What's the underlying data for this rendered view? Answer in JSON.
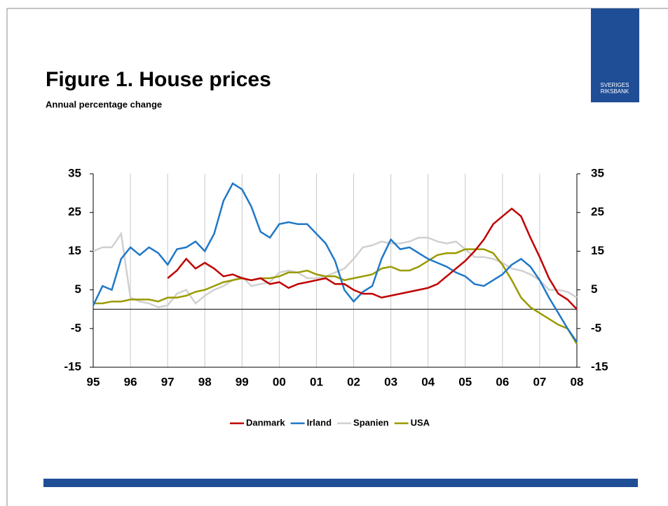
{
  "header": {
    "title": "Figure 1. House prices",
    "subtitle": "Annual percentage change",
    "logo": [
      "SVERIGES",
      "RIKSBANK"
    ]
  },
  "chart_data": {
    "type": "line",
    "x": [
      1995,
      1995.25,
      1995.5,
      1995.75,
      1996,
      1996.25,
      1996.5,
      1996.75,
      1997,
      1997.25,
      1997.5,
      1997.75,
      1998,
      1998.25,
      1998.5,
      1998.75,
      1999,
      1999.25,
      1999.5,
      1999.75,
      2000,
      2000.25,
      2000.5,
      2000.75,
      2001,
      2001.25,
      2001.5,
      2001.75,
      2002,
      2002.25,
      2002.5,
      2002.75,
      2003,
      2003.25,
      2003.5,
      2003.75,
      2004,
      2004.25,
      2004.5,
      2004.75,
      2005,
      2005.25,
      2005.5,
      2005.75,
      2006,
      2006.25,
      2006.5,
      2006.75,
      2007,
      2007.25,
      2007.5,
      2007.75,
      2008
    ],
    "xlim": [
      1995,
      2008
    ],
    "xticks": [
      {
        "value": 1995,
        "label": "95"
      },
      {
        "value": 1996,
        "label": "96"
      },
      {
        "value": 1997,
        "label": "97"
      },
      {
        "value": 1998,
        "label": "98"
      },
      {
        "value": 1999,
        "label": "99"
      },
      {
        "value": 2000,
        "label": "00"
      },
      {
        "value": 2001,
        "label": "01"
      },
      {
        "value": 2002,
        "label": "02"
      },
      {
        "value": 2003,
        "label": "03"
      },
      {
        "value": 2004,
        "label": "04"
      },
      {
        "value": 2005,
        "label": "05"
      },
      {
        "value": 2006,
        "label": "06"
      },
      {
        "value": 2007,
        "label": "07"
      },
      {
        "value": 2008,
        "label": "08"
      }
    ],
    "ylim": [
      -15,
      35
    ],
    "yticks": [
      -15,
      -5,
      5,
      15,
      25,
      35
    ],
    "grid": true,
    "legend": "bottom",
    "series": [
      {
        "name": "Danmark",
        "color": "#c00000",
        "values": [
          null,
          null,
          null,
          null,
          null,
          null,
          null,
          null,
          8,
          10,
          13,
          10.5,
          12,
          10.5,
          8.5,
          9,
          8,
          7.5,
          8,
          6.5,
          7,
          5.5,
          6.5,
          7,
          7.5,
          8,
          6.5,
          6.5,
          5,
          4,
          4,
          3,
          3.5,
          4,
          4.5,
          5,
          5.5,
          6.5,
          8.5,
          10.5,
          12.5,
          15,
          18,
          22,
          24,
          26,
          24,
          18.5,
          13.5,
          8,
          4,
          2.5,
          0
        ]
      },
      {
        "name": "Irland",
        "color": "#2078c8",
        "values": [
          1,
          6,
          5,
          13,
          16,
          14,
          16,
          14.5,
          11.5,
          15.5,
          16,
          17.5,
          15,
          19.5,
          28,
          32.5,
          31,
          26.5,
          20,
          18.5,
          22,
          22.5,
          22,
          22,
          19.5,
          17,
          12.5,
          5,
          2,
          4.5,
          6,
          13,
          18,
          15.5,
          16,
          14.5,
          13,
          12,
          11,
          9.5,
          8.5,
          6.5,
          6,
          7.5,
          9,
          11.5,
          13,
          11,
          7.5,
          3,
          -1,
          -5,
          -8.5
        ]
      },
      {
        "name": "Spanien",
        "color": "#d0d0d0",
        "values": [
          15,
          16,
          16,
          19.5,
          3,
          2,
          1.5,
          0.5,
          1,
          4,
          5,
          1.5,
          3.5,
          5,
          6,
          7.5,
          8.5,
          6,
          6.5,
          7,
          9.5,
          10,
          9.5,
          8,
          8,
          8.5,
          9.5,
          10.5,
          13,
          16,
          16.5,
          17.5,
          17,
          17,
          17.5,
          18.5,
          18.5,
          17.5,
          17,
          17.5,
          15.5,
          13.5,
          13.5,
          13,
          12,
          10.5,
          10,
          9,
          7.5,
          5,
          5,
          4.5,
          3
        ]
      },
      {
        "name": "USA",
        "color": "#9a9a00",
        "values": [
          1.5,
          1.5,
          2,
          2,
          2.5,
          2.5,
          2.5,
          2,
          3,
          3,
          3.5,
          4.5,
          5,
          6,
          7,
          7.5,
          8,
          7.5,
          8,
          8,
          8.5,
          9.5,
          9.5,
          10,
          9,
          8.5,
          8.5,
          7.5,
          8,
          8.5,
          9,
          10.5,
          11,
          10,
          10,
          11,
          12.5,
          14,
          14.5,
          14.5,
          15.5,
          15.5,
          15.5,
          14.5,
          11.5,
          7.5,
          3,
          0.5,
          -1,
          -2.5,
          -4,
          -5,
          -9
        ]
      }
    ]
  }
}
